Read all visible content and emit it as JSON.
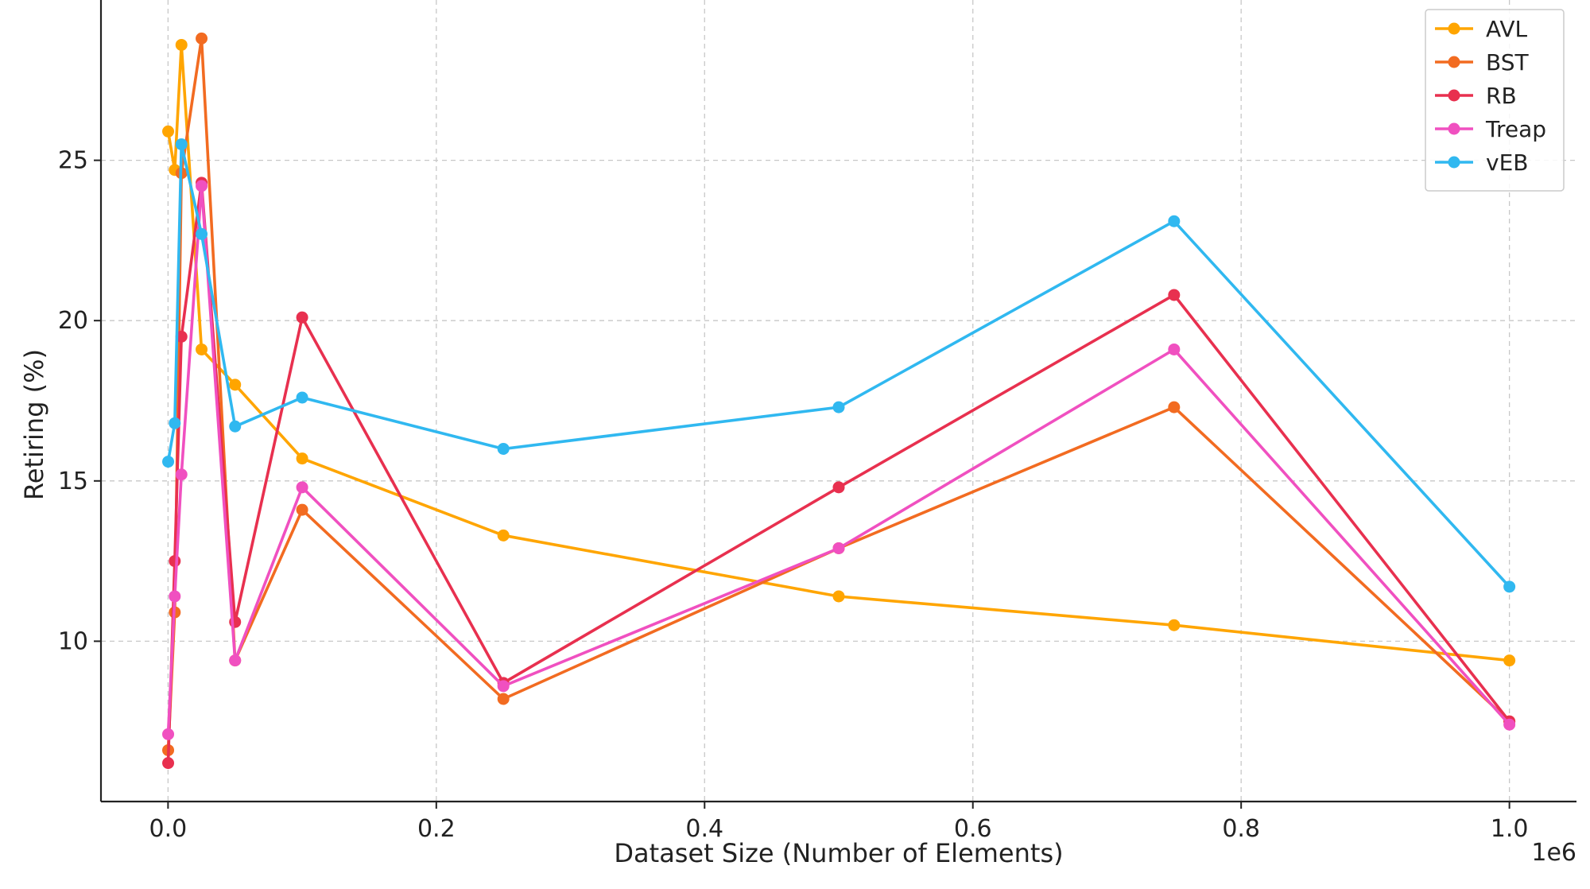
{
  "chart_data": {
    "type": "line",
    "title": "",
    "xlabel": "Dataset Size (Number of Elements)",
    "ylabel": "Retiring (%)",
    "x_offset_label": "1e6",
    "xlim": [
      -50000,
      1050000
    ],
    "ylim": [
      5,
      30
    ],
    "x_ticks": [
      0,
      200000,
      400000,
      600000,
      800000,
      1000000
    ],
    "x_tick_labels": [
      "0.0",
      "0.2",
      "0.4",
      "0.6",
      "0.8",
      "1.0"
    ],
    "y_ticks": [
      10,
      15,
      20,
      25
    ],
    "y_tick_labels": [
      "10",
      "15",
      "20",
      "25"
    ],
    "grid": true,
    "legend_position": "top-right",
    "x": [
      100,
      5000,
      10000,
      25000,
      50000,
      100000,
      250000,
      500000,
      750000,
      1000000
    ],
    "series": [
      {
        "name": "AVL",
        "color": "#FFA500",
        "values": [
          25.9,
          24.7,
          28.6,
          19.1,
          18.0,
          15.7,
          13.3,
          11.4,
          10.5,
          9.4
        ]
      },
      {
        "name": "BST",
        "color": "#F26B21",
        "values": [
          6.6,
          10.9,
          24.6,
          28.8,
          9.4,
          14.1,
          8.2,
          12.9,
          17.3,
          7.5
        ]
      },
      {
        "name": "RB",
        "color": "#E8304F",
        "values": [
          6.2,
          12.5,
          19.5,
          24.3,
          10.6,
          20.1,
          8.7,
          14.8,
          20.8,
          7.5
        ]
      },
      {
        "name": "Treap",
        "color": "#F050C0",
        "values": [
          7.1,
          11.4,
          15.2,
          24.2,
          9.4,
          14.8,
          8.6,
          12.9,
          19.1,
          7.4
        ]
      },
      {
        "name": "vEB",
        "color": "#30B8F0",
        "values": [
          15.6,
          16.8,
          25.5,
          22.7,
          16.7,
          17.6,
          16.0,
          17.3,
          23.1,
          11.7
        ]
      }
    ]
  }
}
